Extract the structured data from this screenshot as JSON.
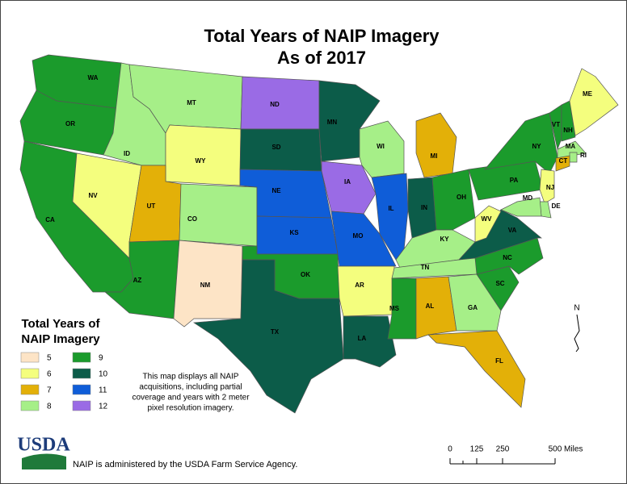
{
  "header": {
    "title_lines": [
      "Total Years of NAIP Imagery",
      "As of 2017"
    ]
  },
  "legend": {
    "title_lines": [
      "Total Years of",
      "NAIP Imagery"
    ],
    "items": [
      {
        "value": 5,
        "color": "#fde4c6"
      },
      {
        "value": 6,
        "color": "#f4fe7e"
      },
      {
        "value": 7,
        "color": "#e3b008"
      },
      {
        "value": 8,
        "color": "#a6ef88"
      },
      {
        "value": 9,
        "color": "#1b9b2c"
      },
      {
        "value": 10,
        "color": "#0c5c49"
      },
      {
        "value": 11,
        "color": "#0f5dd8"
      },
      {
        "value": 12,
        "color": "#9a6be5"
      }
    ]
  },
  "states": [
    {
      "label": "WA",
      "years": 9
    },
    {
      "label": "OR",
      "years": 9
    },
    {
      "label": "CA",
      "years": 9
    },
    {
      "label": "NV",
      "years": 6
    },
    {
      "label": "ID",
      "years": 8
    },
    {
      "label": "MT",
      "years": 8
    },
    {
      "label": "WY",
      "years": 6
    },
    {
      "label": "UT",
      "years": 7
    },
    {
      "label": "AZ",
      "years": 9
    },
    {
      "label": "CO",
      "years": 8
    },
    {
      "label": "NM",
      "years": 5
    },
    {
      "label": "ND",
      "years": 12
    },
    {
      "label": "SD",
      "years": 10
    },
    {
      "label": "NE",
      "years": 11
    },
    {
      "label": "KS",
      "years": 11
    },
    {
      "label": "OK",
      "years": 9
    },
    {
      "label": "TX",
      "years": 10
    },
    {
      "label": "MN",
      "years": 10
    },
    {
      "label": "IA",
      "years": 12
    },
    {
      "label": "MO",
      "years": 11
    },
    {
      "label": "AR",
      "years": 6
    },
    {
      "label": "LA",
      "years": 10
    },
    {
      "label": "WI",
      "years": 8
    },
    {
      "label": "IL",
      "years": 11
    },
    {
      "label": "MI",
      "years": 7
    },
    {
      "label": "IN",
      "years": 10
    },
    {
      "label": "OH",
      "years": 9
    },
    {
      "label": "KY",
      "years": 8
    },
    {
      "label": "TN",
      "years": 8
    },
    {
      "label": "MS",
      "years": 9
    },
    {
      "label": "AL",
      "years": 7
    },
    {
      "label": "GA",
      "years": 8
    },
    {
      "label": "FL",
      "years": 7
    },
    {
      "label": "SC",
      "years": 9
    },
    {
      "label": "NC",
      "years": 9
    },
    {
      "label": "VA",
      "years": 10
    },
    {
      "label": "WV",
      "years": 6
    },
    {
      "label": "PA",
      "years": 9
    },
    {
      "label": "NY",
      "years": 9
    },
    {
      "label": "VT",
      "years": 9
    },
    {
      "label": "NH",
      "years": 9
    },
    {
      "label": "ME",
      "years": 6
    },
    {
      "label": "MA",
      "years": 8
    },
    {
      "label": "RI",
      "years": 8
    },
    {
      "label": "CT",
      "years": 7
    },
    {
      "label": "NJ",
      "years": 6
    },
    {
      "label": "DE",
      "years": 8
    },
    {
      "label": "MD",
      "years": 8
    }
  ],
  "note_lines": [
    "This map displays all NAIP",
    "acquisitions, including partial",
    "coverage and years with 2 meter",
    "pixel resolution imagery."
  ],
  "footer": {
    "logo": "USDA",
    "text": "NAIP is administered by the USDA Farm Service Agency."
  },
  "scale_bar": {
    "labels": [
      "0",
      "125",
      "250",
      "500 Miles"
    ]
  },
  "north_arrow": "N"
}
